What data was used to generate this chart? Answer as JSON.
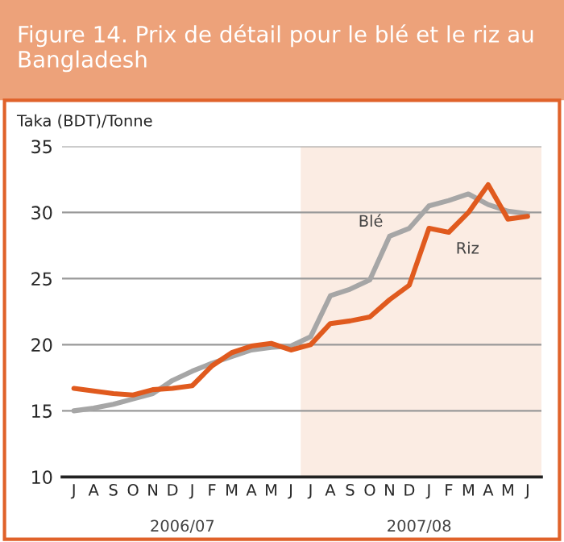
{
  "chart_data": {
    "type": "line",
    "title": "Figure 14. Prix de détail pour le blé et le riz au Bangladesh",
    "ylabel": "Taka (BDT)/Tonne",
    "categories": [
      "J",
      "A",
      "S",
      "O",
      "N",
      "D",
      "J",
      "F",
      "M",
      "A",
      "M",
      "J",
      "J",
      "A",
      "S",
      "O",
      "N",
      "D",
      "J",
      "F",
      "M",
      "A",
      "M",
      "J"
    ],
    "series": [
      {
        "name": "Blé",
        "color": "#a6a6a6",
        "values": [
          15.0,
          15.2,
          15.5,
          15.9,
          16.3,
          17.3,
          18.0,
          18.6,
          19.1,
          19.6,
          19.8,
          19.9,
          20.6,
          23.7,
          24.2,
          24.9,
          28.2,
          28.8,
          30.5,
          30.9,
          31.4,
          30.6,
          30.1,
          29.9
        ]
      },
      {
        "name": "Riz",
        "color": "#e05a1e",
        "values": [
          16.7,
          16.5,
          16.3,
          16.2,
          16.6,
          16.7,
          16.9,
          18.4,
          19.4,
          19.9,
          20.1,
          19.6,
          20.0,
          21.6,
          21.8,
          22.1,
          23.4,
          24.5,
          28.8,
          28.5,
          30.0,
          32.1,
          29.5,
          29.7
        ]
      }
    ],
    "ylim": [
      10,
      35
    ],
    "yticks": [
      10,
      15,
      20,
      25,
      30,
      35
    ],
    "annotations": [
      "2006/07",
      "2007/08"
    ],
    "grid": "y",
    "legend": false,
    "marker": "none",
    "line_style": "solid"
  }
}
